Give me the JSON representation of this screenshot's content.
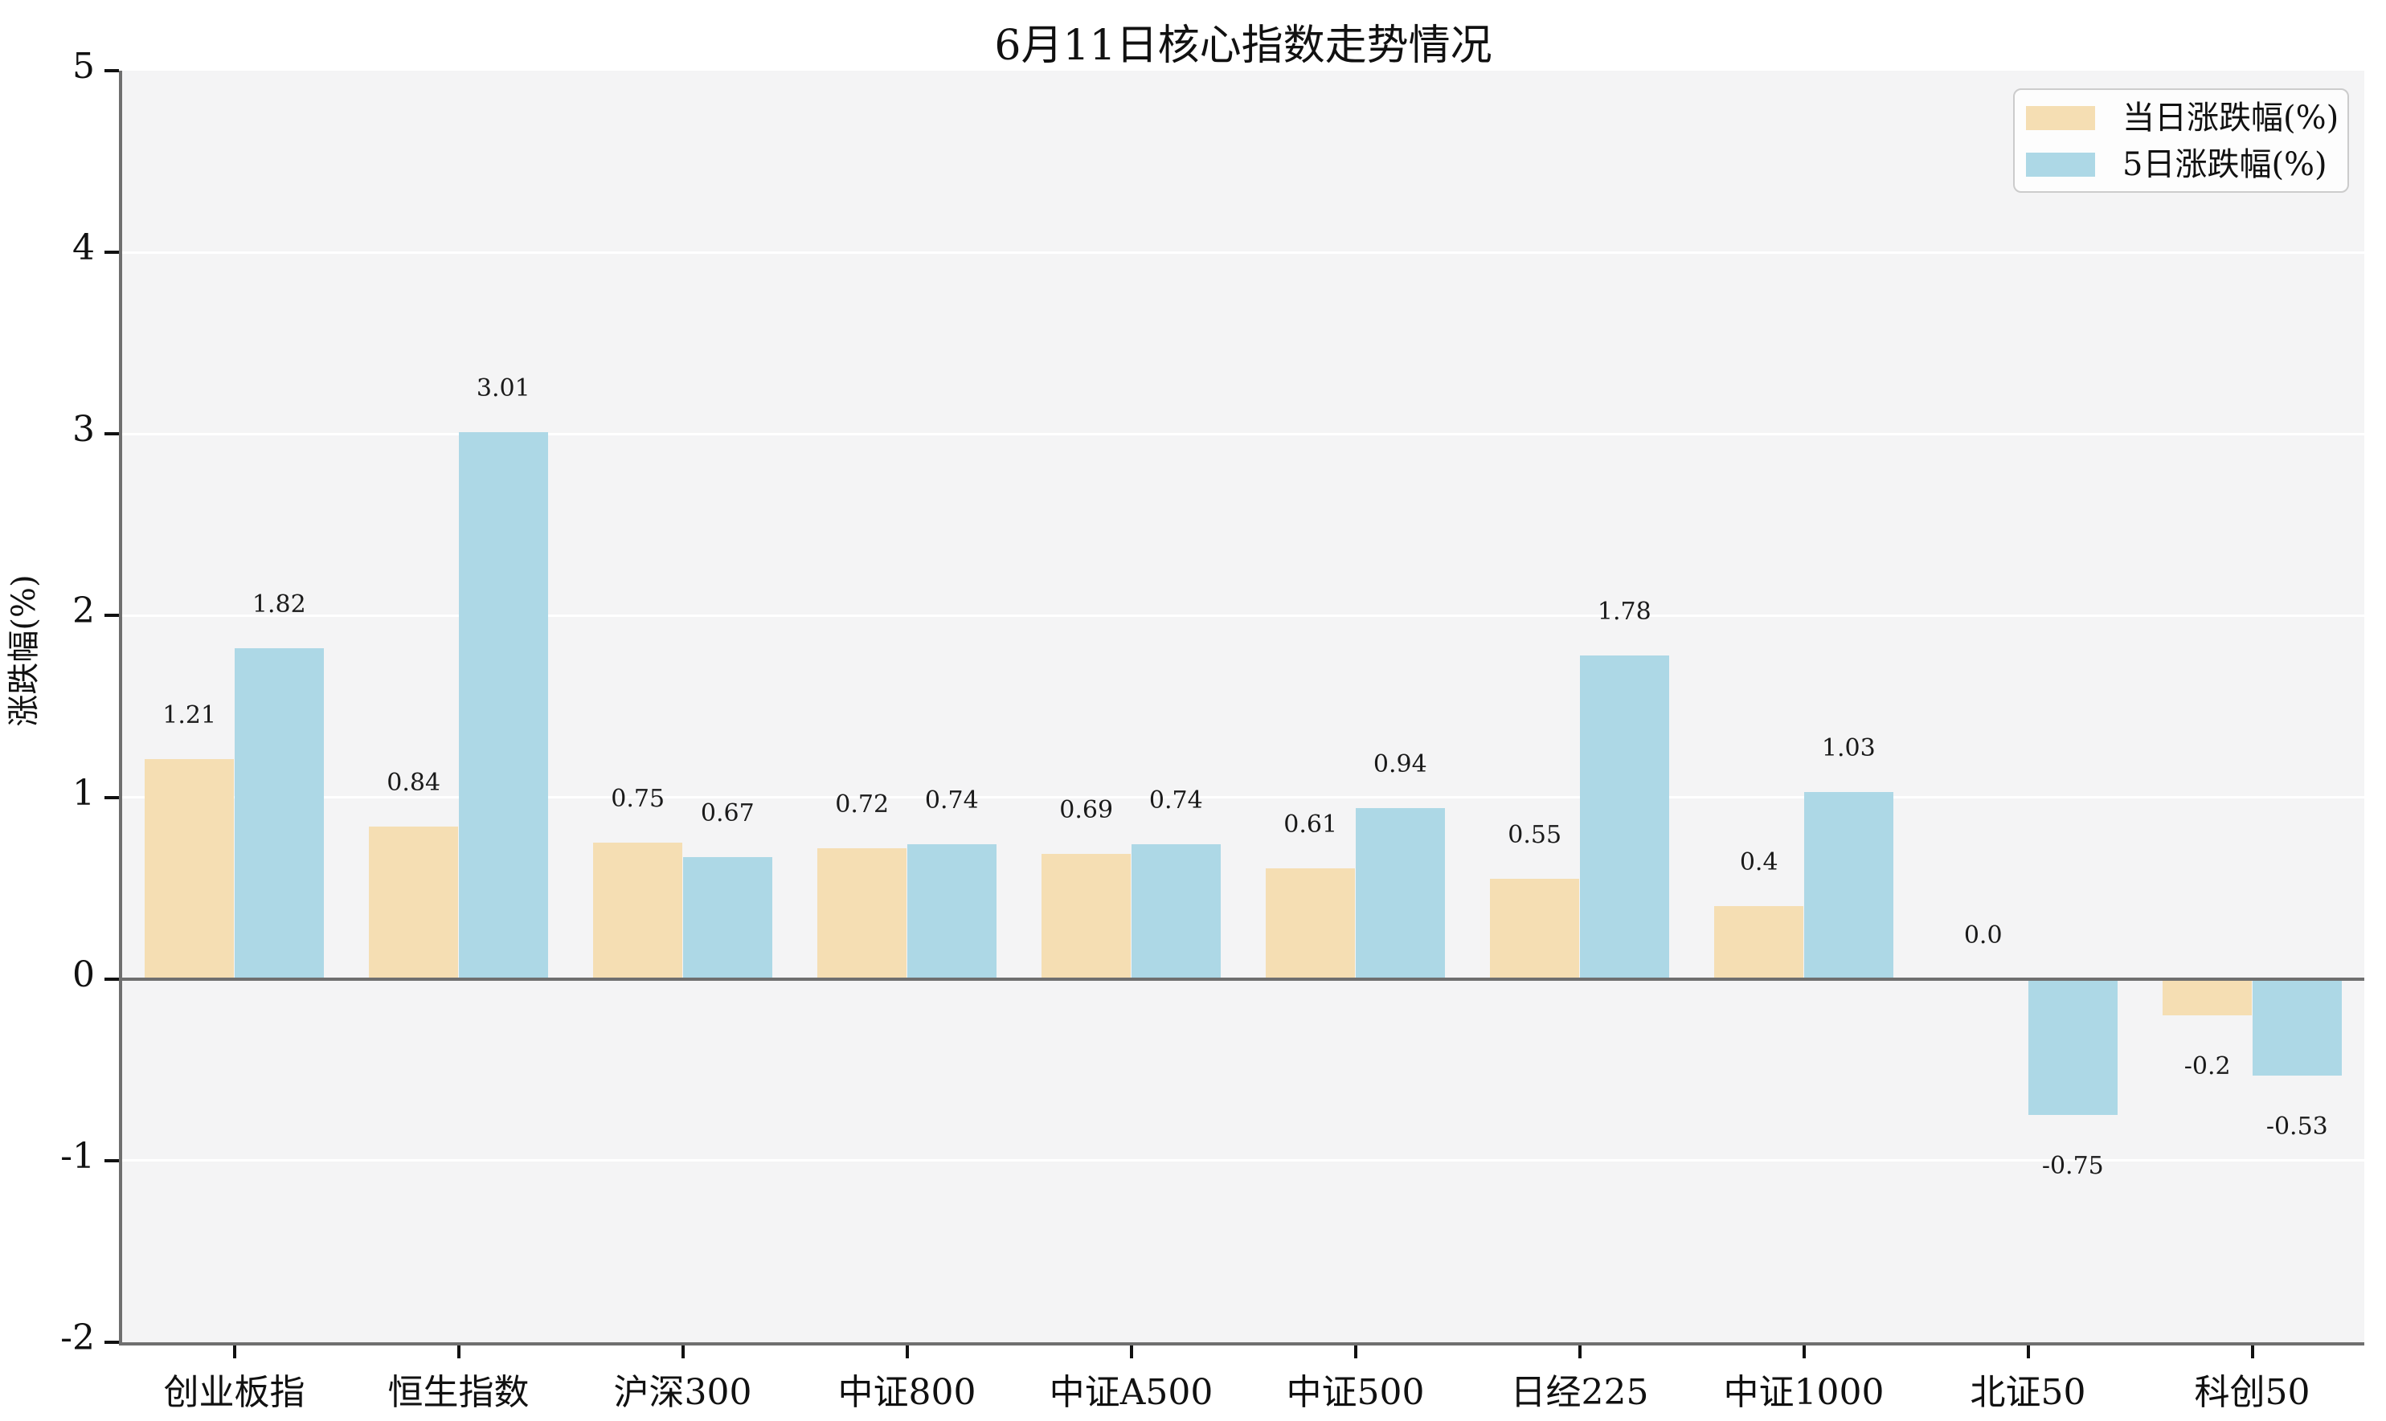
{
  "title": "6月11日核心指数走势情况",
  "chart_data": {
    "type": "bar",
    "categories": [
      "创业板指",
      "恒生指数",
      "沪深300",
      "中证800",
      "中证A500",
      "中证500",
      "日经225",
      "中证1000",
      "北证50",
      "科创50"
    ],
    "series": [
      {
        "name": "当日涨跌幅(%)",
        "color": "#f5deb3",
        "values": [
          1.21,
          0.84,
          0.75,
          0.72,
          0.69,
          0.61,
          0.55,
          0.4,
          0.0,
          -0.2
        ],
        "labels": [
          "1.21",
          "0.84",
          "0.75",
          "0.72",
          "0.69",
          "0.61",
          "0.55",
          "0.4",
          "0.0",
          "-0.2"
        ]
      },
      {
        "name": "5日涨跌幅(%)",
        "color": "#add8e6",
        "values": [
          1.82,
          3.01,
          0.67,
          0.74,
          0.74,
          0.94,
          1.78,
          1.03,
          -0.75,
          -0.53
        ],
        "labels": [
          "1.82",
          "3.01",
          "0.67",
          "0.74",
          "0.74",
          "0.94",
          "1.78",
          "1.03",
          "-0.75",
          "-0.53"
        ]
      }
    ],
    "ylabel": "涨跌幅(%)",
    "ylim": [
      -2,
      5
    ],
    "yticks": [
      5,
      4,
      3,
      2,
      1,
      0,
      -1,
      -2
    ],
    "ytick_labels": [
      "5",
      "4",
      "3",
      "2",
      "1",
      "0",
      "-1",
      "-2"
    ],
    "grid": true,
    "legend_position": "upper right",
    "colors": {
      "plot_background": "#f4f4f5",
      "figure_background": "#ffffff",
      "gridline": "#ffffff",
      "axis": "#6f6f6f",
      "text": "#111111"
    }
  }
}
